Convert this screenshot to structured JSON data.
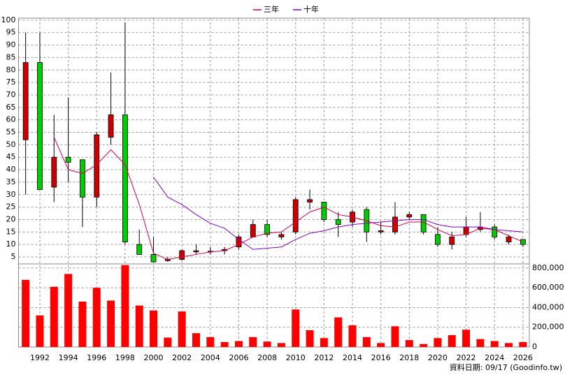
{
  "chart_data": [
    {
      "type": "candlestick",
      "x": [
        1991,
        1992,
        1993,
        1994,
        1995,
        1996,
        1997,
        1998,
        1999,
        2000,
        2001,
        2002,
        2003,
        2004,
        2005,
        2006,
        2007,
        2008,
        2009,
        2010,
        2011,
        2012,
        2013,
        2014,
        2015,
        2016,
        2017,
        2018,
        2019,
        2020,
        2021,
        2022,
        2023,
        2024,
        2025,
        2026
      ],
      "open": [
        52,
        83,
        33,
        45,
        44,
        29,
        53,
        62,
        10,
        6,
        3.5,
        4,
        7,
        7,
        7.5,
        9,
        13,
        18,
        13,
        15,
        27,
        27,
        20,
        19,
        24,
        15,
        15,
        21,
        22,
        14,
        10,
        14,
        16,
        17,
        11,
        12
      ],
      "high": [
        95,
        95,
        62,
        69,
        44,
        55,
        79,
        99,
        16,
        13,
        5,
        8,
        10,
        9,
        9,
        14,
        20,
        20,
        15,
        29,
        32,
        27,
        23,
        24,
        25,
        19,
        27,
        23,
        22,
        17,
        15,
        21,
        23,
        18,
        14,
        12
      ],
      "low": [
        30,
        32,
        27,
        35,
        17,
        25,
        50,
        10,
        6,
        3,
        3,
        3.5,
        6,
        6,
        6,
        8,
        13,
        13,
        12,
        14,
        24,
        19,
        13,
        17,
        11,
        14,
        14,
        20,
        14,
        9,
        8,
        13,
        15,
        12,
        10,
        9
      ],
      "close": [
        83,
        32,
        45,
        43,
        29,
        54,
        62,
        11,
        6,
        3,
        4,
        7.5,
        7.5,
        7.3,
        8,
        13,
        18,
        14,
        14,
        28,
        28,
        20,
        18,
        23,
        15,
        15.5,
        21,
        22,
        15,
        10,
        13,
        17,
        17,
        13,
        13,
        10
      ],
      "up_color": "#cc0000",
      "down_color": "#00cc00",
      "series": [
        {
          "name": "三年",
          "color": "#dd0044",
          "values": [
            null,
            null,
            53,
            40,
            38.5,
            42,
            48,
            42,
            26,
            6.5,
            4,
            5,
            6,
            7,
            7.5,
            10,
            13,
            14.5,
            15,
            19,
            23,
            25,
            22,
            21,
            19.5,
            17.5,
            17,
            19,
            19,
            16,
            13.5,
            14,
            16.5,
            16,
            13.5,
            11
          ]
        },
        {
          "name": "十年",
          "color": "#8800cc",
          "values": [
            null,
            null,
            null,
            null,
            null,
            null,
            null,
            null,
            null,
            37,
            29,
            26,
            22,
            18.5,
            16.5,
            12,
            8,
            8.5,
            9,
            12,
            14.5,
            15.5,
            17,
            18,
            18.5,
            19,
            19.5,
            20,
            20,
            18,
            17,
            17,
            17,
            16,
            15.5,
            15
          ]
        }
      ],
      "xlim": [
        1990.5,
        2026.45
      ],
      "xticks": [
        1992,
        1994,
        1996,
        1998,
        2000,
        2002,
        2004,
        2006,
        2008,
        2010,
        2012,
        2014,
        2016,
        2018,
        2020,
        2022,
        2024,
        2026
      ],
      "ylim": [
        2.2,
        100.8
      ],
      "yticks": [
        5,
        10,
        15,
        20,
        25,
        30,
        35,
        40,
        45,
        50,
        55,
        60,
        65,
        70,
        75,
        80,
        85,
        90,
        95,
        100
      ],
      "grid": true,
      "legend": "top"
    },
    {
      "type": "bar",
      "x": [
        1991,
        1992,
        1993,
        1994,
        1995,
        1996,
        1997,
        1998,
        1999,
        2000,
        2001,
        2002,
        2003,
        2004,
        2005,
        2006,
        2007,
        2008,
        2009,
        2010,
        2011,
        2012,
        2013,
        2014,
        2015,
        2016,
        2017,
        2018,
        2019,
        2020,
        2021,
        2022,
        2023,
        2024,
        2025,
        2026
      ],
      "values": [
        680000,
        320000,
        610000,
        740000,
        460000,
        600000,
        470000,
        830000,
        420000,
        370000,
        95000,
        360000,
        140000,
        100000,
        50000,
        60000,
        100000,
        55000,
        40000,
        380000,
        170000,
        90000,
        300000,
        220000,
        100000,
        40000,
        210000,
        70000,
        30000,
        90000,
        120000,
        175000,
        80000,
        60000,
        40000,
        50000
      ],
      "color": "#ff0000",
      "ylim": [
        0,
        842000
      ],
      "yticks": [
        0,
        {
          "value": 200000,
          "label": "200,000"
        },
        {
          "value": 400000,
          "label": "400,000"
        },
        {
          "value": 600000,
          "label": "600,000"
        },
        {
          "value": 800000,
          "label": "800,000"
        }
      ],
      "grid": true
    }
  ],
  "footer": "資料日期: 09/17 (Goodinfo.tw)"
}
